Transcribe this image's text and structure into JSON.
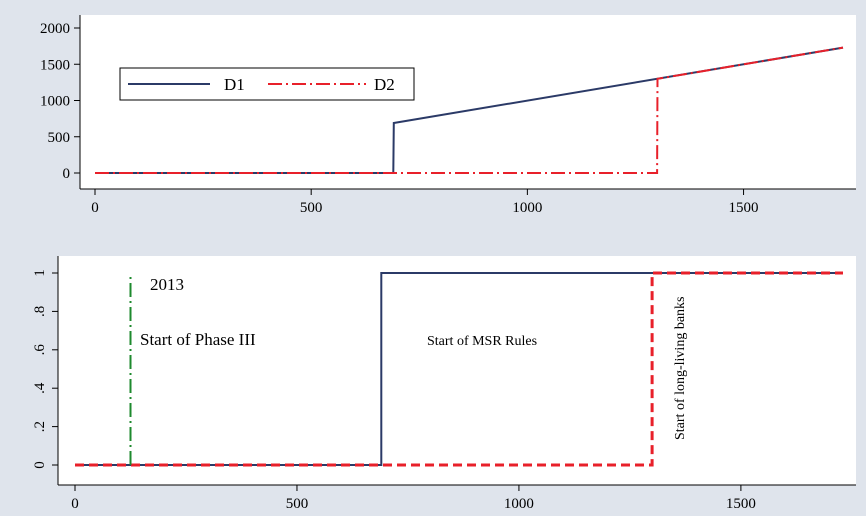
{
  "chart_data": [
    {
      "type": "line",
      "xlim": [
        0,
        1730
      ],
      "ylim": [
        0,
        2000
      ],
      "x_ticks": [
        "0",
        "500",
        "1000",
        "1500"
      ],
      "y_ticks": [
        "0",
        "500",
        "1000",
        "1500",
        "2000"
      ],
      "grid": false,
      "legend": {
        "placement": "top-left",
        "entries": [
          "D1",
          "D2"
        ]
      },
      "series": [
        {
          "name": "D1",
          "color": "#2b3a67",
          "style": "solid",
          "x": [
            0,
            690,
            691,
            1730
          ],
          "y": [
            0,
            0,
            690,
            1730
          ]
        },
        {
          "name": "D2",
          "color": "#e8202a",
          "style": "dash-dot",
          "x": [
            0,
            1300,
            1301,
            1730
          ],
          "y": [
            0,
            0,
            1300,
            1730
          ]
        }
      ]
    },
    {
      "type": "line",
      "xlim": [
        0,
        1730
      ],
      "ylim": [
        0,
        1
      ],
      "x_ticks": [
        "0",
        "500",
        "1000",
        "1500"
      ],
      "y_ticks": [
        "0",
        ".2",
        ".4",
        ".6",
        ".8",
        "1"
      ],
      "grid": false,
      "series": [
        {
          "color": "#2b3a67",
          "style": "solid",
          "x": [
            0,
            690,
            690,
            1730
          ],
          "y": [
            0,
            0,
            1,
            1
          ]
        },
        {
          "color": "#e8202a",
          "style": "dashed",
          "x": [
            0,
            1300,
            1300,
            1730
          ],
          "y": [
            0,
            0,
            1,
            1
          ]
        },
        {
          "color": "#1e8a2e",
          "style": "dash-dot",
          "x": [
            125,
            125
          ],
          "y": [
            0,
            1
          ]
        }
      ],
      "annotations": {
        "year": "2013",
        "phase3": "Start of Phase III",
        "msr": "Start of MSR Rules",
        "banks": "Start of long-living banks"
      }
    }
  ]
}
